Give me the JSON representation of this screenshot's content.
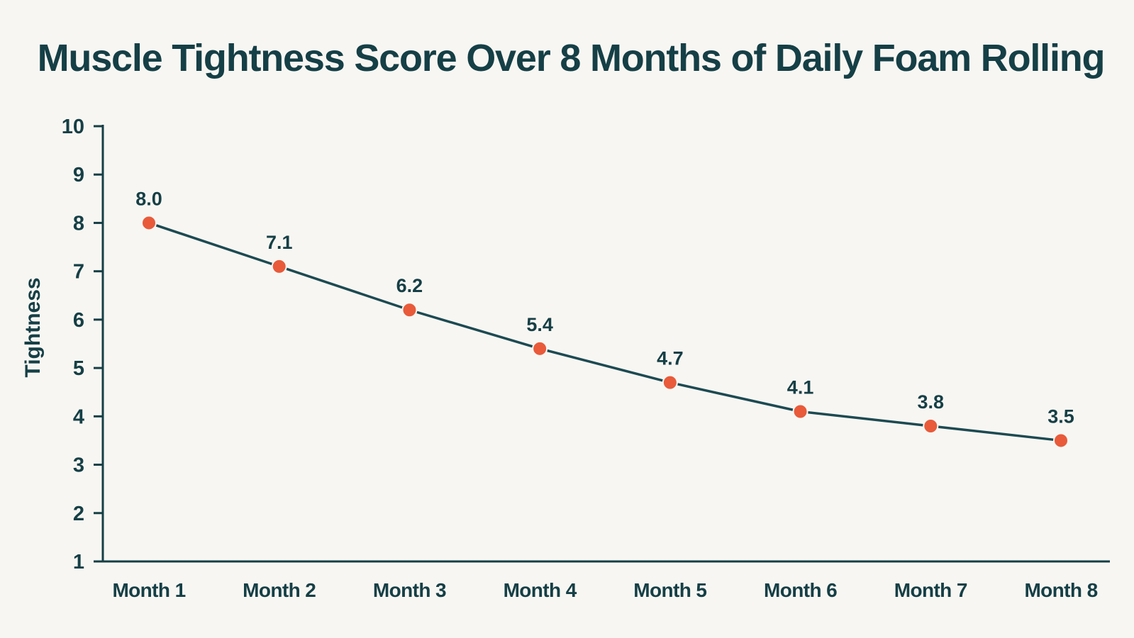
{
  "chart_data": {
    "type": "line",
    "title": "Muscle Tightness Score Over 8 Months of Daily Foam Rolling",
    "xlabel": "",
    "ylabel": "Tightness",
    "categories": [
      "Month 1",
      "Month 2",
      "Month 3",
      "Month 4",
      "Month 5",
      "Month 6",
      "Month 7",
      "Month 8"
    ],
    "series": [
      {
        "values": [
          8.0,
          7.1,
          6.2,
          5.4,
          4.7,
          4.1,
          3.8,
          3.5
        ],
        "value_labels": [
          "8.0",
          "7.1",
          "6.2",
          "5.4",
          "4.7",
          "4.1",
          "3.8",
          "3.5"
        ]
      }
    ],
    "ylim": [
      1,
      10
    ],
    "yticks": [
      1,
      2,
      3,
      4,
      5,
      6,
      7,
      8,
      9,
      10
    ],
    "ytick_labels": [
      "1",
      "2",
      "3",
      "4",
      "5",
      "6",
      "7",
      "8",
      "9",
      "10"
    ],
    "grid": false,
    "legend": "none",
    "colors": {
      "line": "#1c4a52",
      "marker": "#e85a3a",
      "text": "#153f46",
      "axis": "#153f46",
      "background": "#f8f6f2"
    }
  }
}
